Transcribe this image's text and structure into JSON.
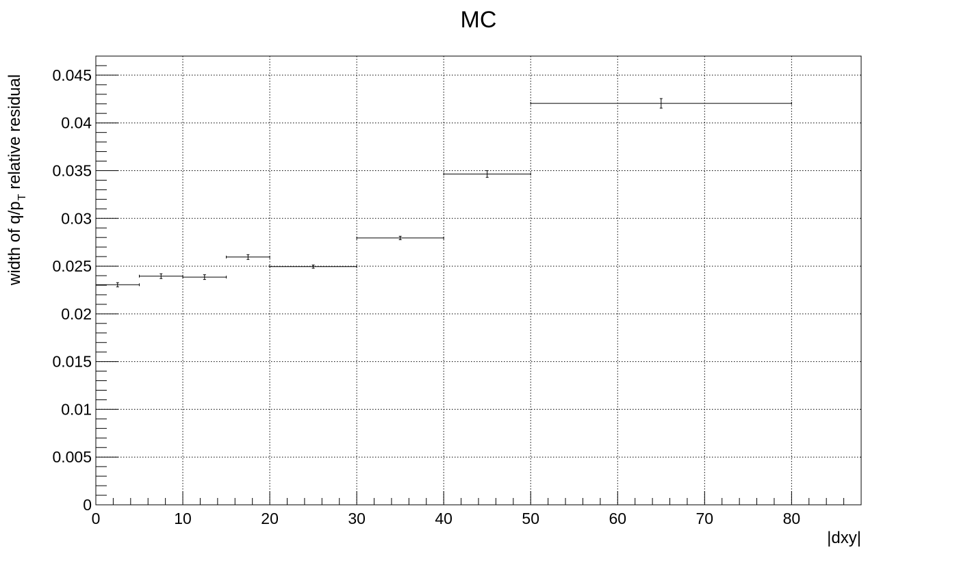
{
  "chart_data": {
    "type": "scatter",
    "title": "MC",
    "xlabel": "|dxy|",
    "ylabel": {
      "main": "width of q/p",
      "subscript": "T",
      "rest": " relative residual"
    },
    "xlim": [
      0,
      88
    ],
    "ylim": [
      0,
      0.047
    ],
    "grid": true,
    "x_ticks": [
      0,
      10,
      20,
      30,
      40,
      50,
      60,
      70,
      80
    ],
    "x_tick_labels": [
      "0",
      "10",
      "20",
      "30",
      "40",
      "50",
      "60",
      "70",
      "80"
    ],
    "y_ticks": [
      0,
      0.005,
      0.01,
      0.015,
      0.02,
      0.025,
      0.03,
      0.035,
      0.04,
      0.045
    ],
    "y_tick_labels": [
      "0",
      "0.005",
      "0.01",
      "0.015",
      "0.02",
      "0.025",
      "0.03",
      "0.035",
      "0.04",
      "0.045"
    ],
    "series": [
      {
        "points": [
          {
            "x_low": 0,
            "x_high": 5,
            "y": 0.02305,
            "y_err": 0.00022
          },
          {
            "x_low": 5,
            "x_high": 10,
            "y": 0.02395,
            "y_err": 0.00025
          },
          {
            "x_low": 10,
            "x_high": 15,
            "y": 0.02385,
            "y_err": 0.00025
          },
          {
            "x_low": 15,
            "x_high": 20,
            "y": 0.02595,
            "y_err": 0.00025
          },
          {
            "x_low": 20,
            "x_high": 30,
            "y": 0.02495,
            "y_err": 0.00017
          },
          {
            "x_low": 30,
            "x_high": 40,
            "y": 0.02795,
            "y_err": 0.00018
          },
          {
            "x_low": 40,
            "x_high": 50,
            "y": 0.03465,
            "y_err": 0.00035
          },
          {
            "x_low": 50,
            "x_high": 80,
            "y": 0.04205,
            "y_err": 0.0005
          }
        ]
      }
    ],
    "colors": {
      "marker": "#000000",
      "grid": "#000000",
      "frame": "#000000"
    }
  }
}
